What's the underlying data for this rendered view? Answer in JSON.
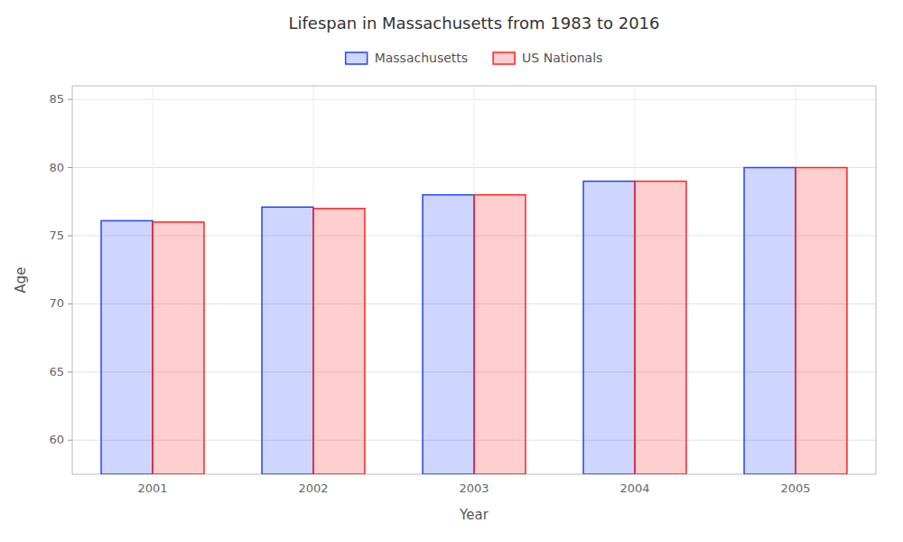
{
  "chart_data": {
    "type": "bar",
    "title": "Lifespan in Massachusetts from 1983 to 2016",
    "xlabel": "Year",
    "ylabel": "Age",
    "categories": [
      "2001",
      "2002",
      "2003",
      "2004",
      "2005"
    ],
    "series": [
      {
        "name": "Massachusetts",
        "color": "#2244ff",
        "values": [
          76.1,
          77.1,
          78.0,
          79.0,
          80.0
        ]
      },
      {
        "name": "US Nationals",
        "color": "#ff2222",
        "values": [
          76.0,
          77.0,
          78.0,
          79.0,
          80.0
        ]
      }
    ],
    "ylim": [
      57.5,
      86
    ],
    "yticks": [
      60,
      65,
      70,
      75,
      80,
      85
    ],
    "grid": true,
    "legend": "top"
  }
}
